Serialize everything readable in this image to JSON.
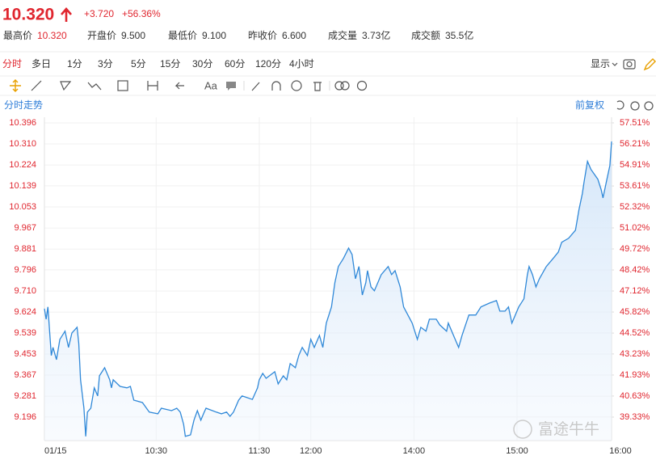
{
  "header": {
    "price": "10.320",
    "change": "+3.720",
    "change_pct": "+56.36%"
  },
  "stats": [
    {
      "label": "最高价",
      "value": "10.320"
    },
    {
      "label": "开盘价",
      "value": "9.500"
    },
    {
      "label": "最低价",
      "value": "9.100"
    },
    {
      "label": "昨收价",
      "value": "6.600"
    },
    {
      "label": "成交量",
      "value": "3.73亿"
    },
    {
      "label": "成交额",
      "value": "35.5亿"
    }
  ],
  "tabs": [
    "分时",
    "多日",
    "1分",
    "3分",
    "5分",
    "15分",
    "30分",
    "60分",
    "120分",
    "4小时"
  ],
  "display": "显示",
  "chart_data": {
    "type": "line",
    "title": "分时走势",
    "adjust": "前复权",
    "watermark": "富途牛牛",
    "color": "#2f88d8",
    "grid": true,
    "x": [
      0,
      1,
      2,
      4,
      5,
      7,
      9,
      12,
      14,
      16,
      19,
      20,
      21,
      23,
      24,
      25,
      27,
      29,
      31,
      32,
      35,
      38,
      39,
      40,
      44,
      48,
      50,
      52,
      57,
      61,
      66,
      68,
      74,
      77,
      79,
      81,
      82,
      85,
      87,
      89,
      91,
      93,
      94,
      100,
      103,
      106,
      108,
      110,
      113,
      115,
      121,
      124,
      125,
      127,
      129,
      134,
      136,
      139,
      141,
      143,
      146,
      148,
      150,
      153,
      155,
      157,
      160,
      162,
      164,
      167,
      169,
      171,
      174,
      177,
      179,
      181,
      183,
      185,
      187,
      188,
      190,
      192,
      196,
      200,
      202,
      204,
      207,
      209,
      214,
      217,
      219,
      222,
      224,
      228,
      230,
      234,
      235,
      239,
      241,
      243,
      247,
      251,
      254,
      259,
      263,
      265,
      268,
      270,
      272,
      276,
      279,
      281,
      282,
      284,
      286,
      288,
      292,
      296,
      299,
      301,
      305,
      309,
      311,
      313,
      314,
      316,
      318,
      322,
      324,
      325,
      327,
      329,
      330
    ],
    "values": [
      9.638,
      9.595,
      9.645,
      9.447,
      9.48,
      9.43,
      9.513,
      9.546,
      9.48,
      9.539,
      9.562,
      9.496,
      9.348,
      9.232,
      9.117,
      9.216,
      9.232,
      9.315,
      9.282,
      9.364,
      9.397,
      9.348,
      9.315,
      9.348,
      9.321,
      9.315,
      9.321,
      9.265,
      9.255,
      9.216,
      9.209,
      9.232,
      9.222,
      9.232,
      9.216,
      9.166,
      9.117,
      9.123,
      9.183,
      9.222,
      9.183,
      9.216,
      9.232,
      9.216,
      9.209,
      9.216,
      9.199,
      9.216,
      9.265,
      9.282,
      9.268,
      9.315,
      9.348,
      9.374,
      9.354,
      9.381,
      9.331,
      9.364,
      9.348,
      9.414,
      9.397,
      9.447,
      9.48,
      9.447,
      9.513,
      9.48,
      9.529,
      9.48,
      9.579,
      9.645,
      9.744,
      9.81,
      9.843,
      9.885,
      9.859,
      9.76,
      9.81,
      9.694,
      9.744,
      9.793,
      9.727,
      9.711,
      9.777,
      9.81,
      9.777,
      9.793,
      9.727,
      9.645,
      9.579,
      9.513,
      9.562,
      9.546,
      9.595,
      9.595,
      9.572,
      9.546,
      9.579,
      9.513,
      9.48,
      9.529,
      9.612,
      9.612,
      9.645,
      9.661,
      9.671,
      9.628,
      9.628,
      9.645,
      9.579,
      9.645,
      9.678,
      9.777,
      9.81,
      9.777,
      9.727,
      9.76,
      9.81,
      9.843,
      9.869,
      9.909,
      9.925,
      9.958,
      10.041,
      10.107,
      10.156,
      10.239,
      10.206,
      10.166,
      10.123,
      10.09,
      10.156,
      10.222,
      10.32
    ],
    "xlim": [
      0,
      330
    ],
    "xticks": [
      {
        "value": 0,
        "label": "01/15"
      },
      {
        "value": 65,
        "label": "10:30"
      },
      {
        "value": 125,
        "label": "11:30"
      },
      {
        "value": 155,
        "label": "12:00"
      },
      {
        "value": 215,
        "label": "14:00"
      },
      {
        "value": 275,
        "label": "15:00"
      },
      {
        "value": 330,
        "label": "16:00"
      }
    ],
    "ylim": [
      9.1,
      10.419
    ],
    "yticks": [
      10.396,
      {
        "value": 10.31,
        "label": "10.310"
      },
      10.224,
      10.139,
      10.053,
      9.967,
      9.881,
      9.796,
      {
        "value": 9.71,
        "label": "9.710"
      },
      9.624,
      9.539,
      9.453,
      9.367,
      9.281,
      9.196
    ],
    "y2lim": [
      37.88,
      57.86
    ],
    "y2ticks": [
      {
        "value": 57.51,
        "label": "57.51%"
      },
      {
        "value": 56.21,
        "label": "56.21%"
      },
      {
        "value": 54.91,
        "label": "54.91%"
      },
      {
        "value": 53.61,
        "label": "53.61%"
      },
      {
        "value": 52.32,
        "label": "52.32%"
      },
      {
        "value": 51.02,
        "label": "51.02%"
      },
      {
        "value": 49.72,
        "label": "49.72%"
      },
      {
        "value": 48.42,
        "label": "48.42%"
      },
      {
        "value": 47.12,
        "label": "47.12%"
      },
      {
        "value": 45.82,
        "label": "45.82%"
      },
      {
        "value": 44.52,
        "label": "44.52%"
      },
      {
        "value": 43.23,
        "label": "43.23%"
      },
      {
        "value": 41.93,
        "label": "41.93%"
      },
      {
        "value": 40.63,
        "label": "40.63%"
      },
      {
        "value": 39.33,
        "label": "39.33%"
      }
    ]
  }
}
